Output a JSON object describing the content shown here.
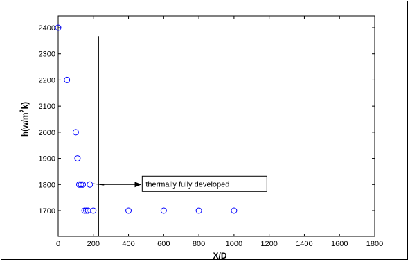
{
  "chart_data": {
    "type": "scatter",
    "title": "",
    "xlabel": "X/D",
    "ylabel": "h(w/m2k)",
    "ylabel_parts": {
      "base": "h(w/m",
      "sup": "2",
      "tail": "k)"
    },
    "xlim": [
      0,
      1800
    ],
    "ylim": [
      1650,
      2400
    ],
    "xticks": [
      "0",
      "200",
      "400",
      "600",
      "800",
      "1000",
      "1200",
      "1400",
      "1600",
      "1800"
    ],
    "xtick_values": [
      0,
      200,
      400,
      600,
      800,
      1000,
      1200,
      1400,
      1600,
      1800
    ],
    "yticks": [
      "1700",
      "1800",
      "1900",
      "2000",
      "2100",
      "2200",
      "2300",
      "2400"
    ],
    "ytick_values": [
      1700,
      1800,
      1900,
      2000,
      2100,
      2200,
      2300,
      2400
    ],
    "grid": false,
    "marker": "circle",
    "marker_color": "#0000ff",
    "series": [
      {
        "x": [
          0,
          50,
          100,
          110,
          120,
          130,
          140,
          150,
          160,
          170,
          180,
          200,
          400,
          600,
          800,
          1000
        ],
        "y": [
          2400,
          2200,
          2000,
          1900,
          1800,
          1800,
          1800,
          1700,
          1700,
          1700,
          1800,
          1700,
          1700,
          1700,
          1700,
          1700
        ]
      }
    ],
    "annotation": {
      "text": "thermally fully developed",
      "boundary_x": 230,
      "boundary_top_y": 2365,
      "arrow_from": [
        200,
        1803
      ],
      "arrow_to": [
        470,
        1800
      ]
    }
  }
}
